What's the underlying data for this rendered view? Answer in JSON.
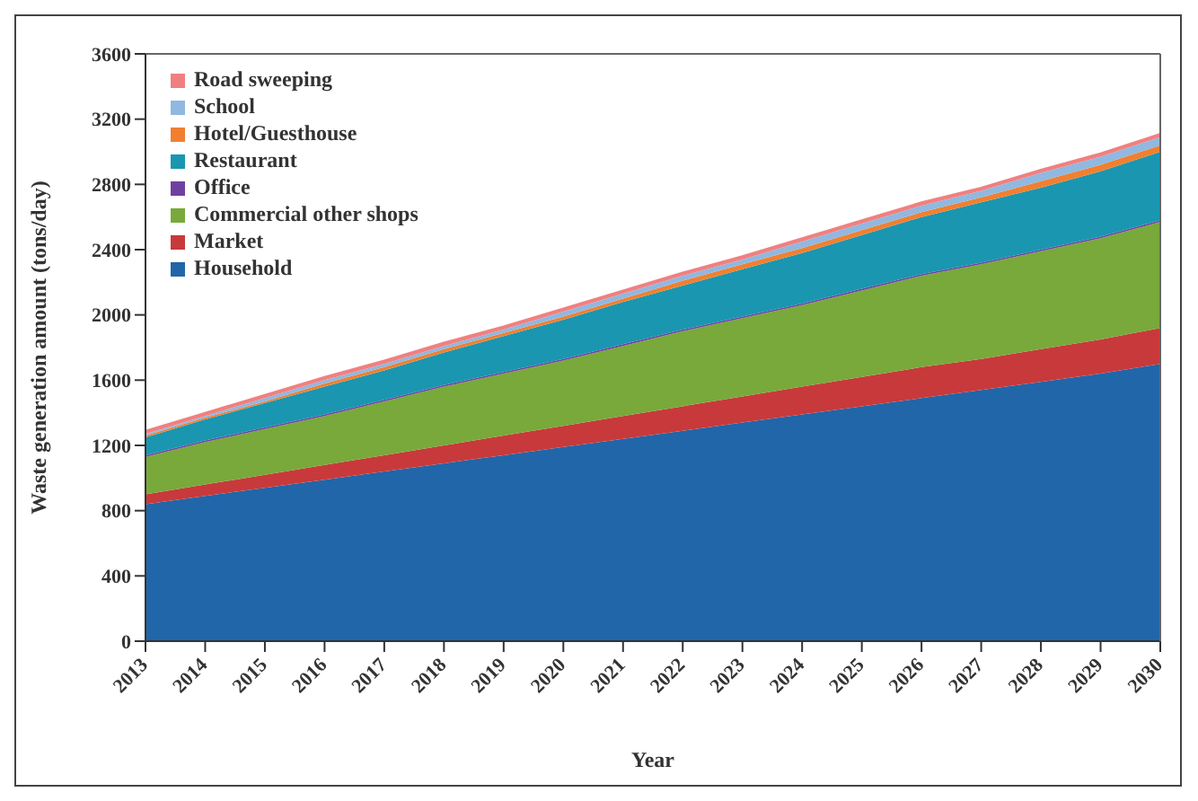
{
  "chart_data": {
    "type": "area",
    "stacked": true,
    "xlabel": "Year",
    "ylabel": "Waste generation amount (tons/day)",
    "categories": [
      "2013",
      "2014",
      "2015",
      "2016",
      "2017",
      "2018",
      "2019",
      "2020",
      "2021",
      "2022",
      "2023",
      "2024",
      "2025",
      "2026",
      "2027",
      "2028",
      "2029",
      "2030"
    ],
    "ylim": [
      0,
      3600
    ],
    "yticks": [
      0,
      400,
      800,
      1200,
      1600,
      2000,
      2400,
      2800,
      3200,
      3600
    ],
    "grid": false,
    "legend": "top left",
    "series": [
      {
        "name": "Household",
        "color": "#2166a8",
        "values": [
          840,
          890,
          940,
          990,
          1040,
          1090,
          1140,
          1190,
          1240,
          1290,
          1340,
          1390,
          1440,
          1490,
          1540,
          1590,
          1640,
          1700
        ]
      },
      {
        "name": "Market",
        "color": "#c8393b",
        "values": [
          60,
          70,
          80,
          90,
          100,
          110,
          120,
          130,
          140,
          150,
          160,
          170,
          180,
          190,
          190,
          200,
          210,
          220
        ]
      },
      {
        "name": "Commercial other shops",
        "color": "#78a93a",
        "values": [
          230,
          260,
          280,
          300,
          330,
          360,
          380,
          400,
          430,
          460,
          480,
          500,
          530,
          560,
          580,
          600,
          620,
          650
        ]
      },
      {
        "name": "Office",
        "color": "#7040a0",
        "values": [
          10,
          10,
          10,
          10,
          10,
          10,
          10,
          10,
          10,
          10,
          10,
          10,
          10,
          10,
          10,
          10,
          10,
          10
        ]
      },
      {
        "name": "Restaurant",
        "color": "#1a96b0",
        "values": [
          110,
          130,
          150,
          170,
          180,
          200,
          220,
          240,
          260,
          270,
          290,
          310,
          330,
          350,
          370,
          380,
          400,
          420
        ]
      },
      {
        "name": "Hotel/Guesthouse",
        "color": "#f08030",
        "values": [
          10,
          10,
          10,
          20,
          20,
          20,
          20,
          20,
          20,
          30,
          30,
          30,
          30,
          30,
          30,
          40,
          40,
          40
        ]
      },
      {
        "name": "School",
        "color": "#90b8e0",
        "values": [
          10,
          10,
          20,
          20,
          20,
          20,
          20,
          30,
          30,
          30,
          30,
          40,
          40,
          40,
          40,
          50,
          50,
          50
        ]
      },
      {
        "name": "Road sweeping",
        "color": "#f08080",
        "values": [
          20,
          20,
          20,
          20,
          20,
          20,
          20,
          20,
          20,
          20,
          20,
          20,
          20,
          20,
          20,
          20,
          20,
          20
        ]
      }
    ]
  }
}
